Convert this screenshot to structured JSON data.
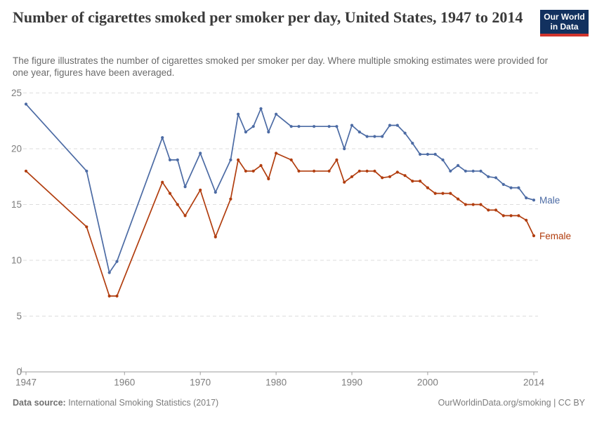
{
  "header": {
    "title": "Number of cigarettes smoked per smoker per day, United States, 1947 to 2014",
    "subtitle": "The figure illustrates the number of cigarettes smoked per smoker per day. Where multiple smoking estimates were provided for one year, figures have been averaged.",
    "logo": {
      "line1": "Our World",
      "line2": "in Data"
    }
  },
  "colors": {
    "male": "#4C6BA4",
    "female": "#B13D0E",
    "gridline": "#DDDDDD",
    "axis": "#9E9E9E",
    "tick_label": "#7D7D7D",
    "title_text": "#3A3A3A",
    "logo_bg": "#12315F",
    "logo_bar": "#D0342C"
  },
  "chart_data": {
    "type": "line",
    "title": "Number of cigarettes smoked per smoker per day, United States, 1947 to 2014",
    "xlabel": "",
    "ylabel": "",
    "xlim": [
      1947,
      2014
    ],
    "ylim": [
      0,
      25
    ],
    "yticks": [
      0,
      5,
      10,
      15,
      20,
      25
    ],
    "xticks": [
      1947,
      1960,
      1970,
      1980,
      1990,
      2000,
      2014
    ],
    "grid": {
      "horizontal": true,
      "style": "dashed"
    },
    "legend_position": "line-end-labels",
    "x": [
      1947,
      1955,
      1958,
      1959,
      1965,
      1966,
      1967,
      1968,
      1970,
      1972,
      1974,
      1975,
      1976,
      1977,
      1978,
      1979,
      1980,
      1982,
      1983,
      1985,
      1987,
      1988,
      1989,
      1990,
      1991,
      1992,
      1993,
      1994,
      1995,
      1996,
      1997,
      1998,
      1999,
      2000,
      2001,
      2002,
      2003,
      2004,
      2005,
      2006,
      2007,
      2008,
      2009,
      2010,
      2011,
      2012,
      2013,
      2014
    ],
    "series": [
      {
        "name": "Male",
        "color": "#4C6BA4",
        "values": [
          24,
          18,
          8.9,
          9.9,
          21,
          19,
          19,
          16.6,
          19.6,
          16.1,
          19,
          23.1,
          21.5,
          22,
          23.6,
          21.5,
          23.1,
          22,
          22,
          22,
          22,
          22,
          20,
          22.1,
          21.5,
          21.1,
          21.1,
          21.1,
          22.1,
          22.1,
          21.4,
          20.5,
          19.5,
          19.5,
          19.5,
          19,
          18,
          18.5,
          18,
          18,
          18,
          17.5,
          17.4,
          16.8,
          16.5,
          16.5,
          15.6,
          15.4
        ]
      },
      {
        "name": "Female",
        "color": "#B13D0E",
        "values": [
          18,
          13,
          6.8,
          6.8,
          17,
          16,
          15,
          14,
          16.3,
          12.1,
          15.5,
          19,
          18,
          18,
          18.5,
          17.3,
          19.6,
          19,
          18,
          18,
          18,
          19,
          17,
          17.5,
          18,
          18,
          18,
          17.4,
          17.5,
          17.9,
          17.6,
          17.1,
          17.1,
          16.5,
          16,
          16,
          16,
          15.5,
          15,
          15,
          15,
          14.5,
          14.5,
          14,
          14,
          14,
          13.6,
          12.2
        ]
      }
    ]
  },
  "footer": {
    "source_label": "Data source:",
    "source_value": " International Smoking Statistics (2017)",
    "credit": "OurWorldinData.org/smoking | CC BY"
  }
}
